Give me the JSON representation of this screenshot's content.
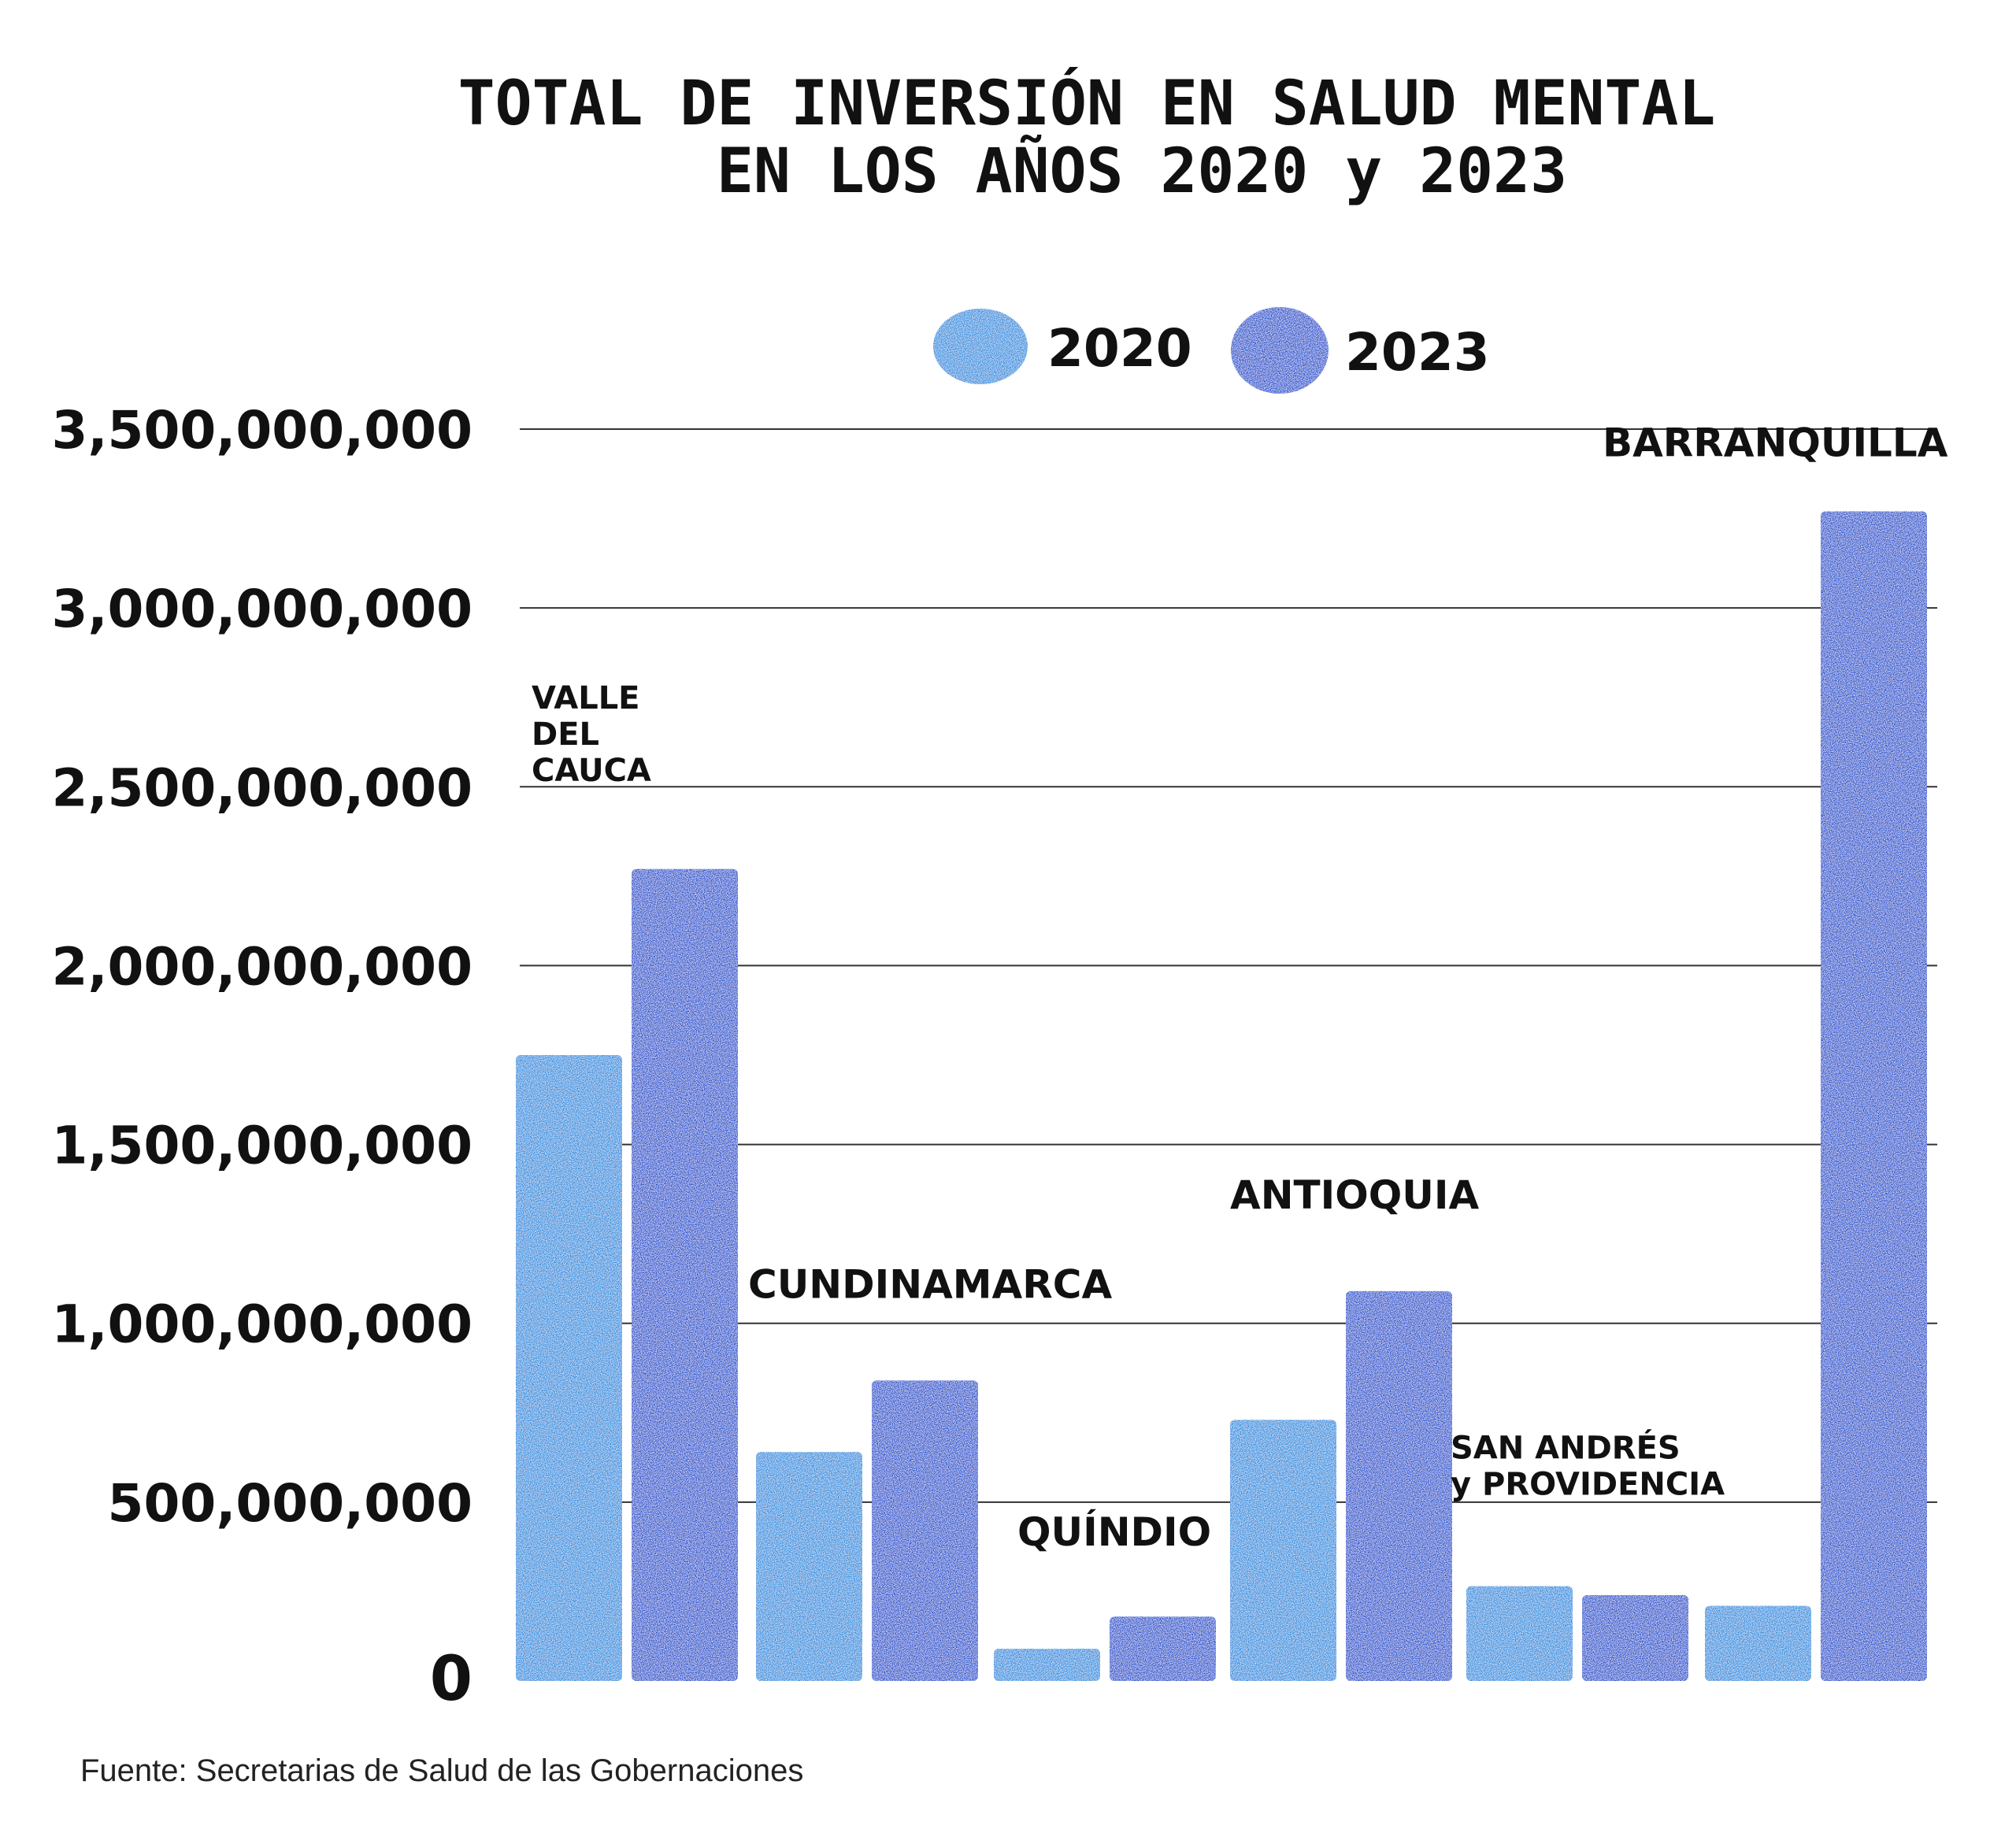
{
  "chart_data": {
    "type": "bar",
    "title_line1": "TOTAL DE INVERSIÓN EN SALUD MENTAL",
    "title_line2": "EN LOS AÑOS 2020 y 2023",
    "categories": [
      "VALLE DEL CAUCA",
      "CUNDINAMARCA",
      "QUÍNDIO",
      "ANTIOQUIA",
      "SAN ANDRÉS y PROVIDENCIA",
      "BARRANQUILLA"
    ],
    "category_labels": [
      [
        "VALLE",
        "DEL",
        "CAUCA"
      ],
      [
        "CUNDINAMARCA"
      ],
      [
        "QUÍNDIO"
      ],
      [
        "ANTIOQUIA"
      ],
      [
        "SAN ANDRÉS",
        "y PROVIDENCIA"
      ],
      [
        "BARRANQUILLA"
      ]
    ],
    "series": [
      {
        "name": "2020",
        "color": "#1e8fe0",
        "values": [
          1750000000,
          640000000,
          90000000,
          730000000,
          265000000,
          210000000
        ]
      },
      {
        "name": "2023",
        "color": "#1750d0",
        "values": [
          2270000000,
          840000000,
          180000000,
          1090000000,
          240000000,
          3270000000
        ]
      }
    ],
    "ylim": [
      0,
      3500000000
    ],
    "yticks": [
      0,
      500000000,
      1000000000,
      1500000000,
      2000000000,
      2500000000,
      3000000000,
      3500000000
    ],
    "ytick_labels": [
      "0",
      "500,000,000",
      "1,000,000,000",
      "1,500,000,000",
      "2,000,000,000",
      "2,500,000,000",
      "3,000,000,000",
      "3,500,000,000"
    ],
    "legend": [
      "2020",
      "2023"
    ],
    "legend_position": "top-center",
    "grid": true
  },
  "source": "Fuente: Secretarias de Salud de las Gobernaciones"
}
